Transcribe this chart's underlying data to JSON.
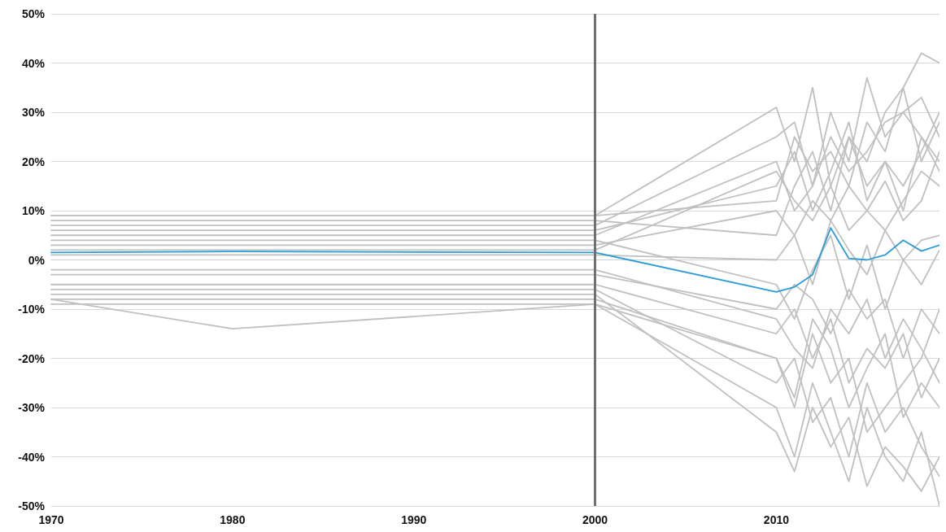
{
  "chart_data": {
    "type": "line",
    "x": [
      1970,
      1980,
      2000,
      2010,
      2011,
      2012,
      2013,
      2014,
      2015,
      2016,
      2017,
      2018,
      2019
    ],
    "xlim": [
      1970,
      2019
    ],
    "xticks": [
      1970,
      1980,
      1990,
      2000,
      2010
    ],
    "ylim": [
      -50,
      50
    ],
    "yticks": [
      {
        "value": -50,
        "label": "-50%"
      },
      {
        "value": -40,
        "label": "-40%"
      },
      {
        "value": -30,
        "label": "-30%"
      },
      {
        "value": -20,
        "label": "-20%"
      },
      {
        "value": -10,
        "label": "-10%"
      },
      {
        "value": 0,
        "label": "0%"
      },
      {
        "value": 10,
        "label": "10%"
      },
      {
        "value": 20,
        "label": "20%"
      },
      {
        "value": 30,
        "label": "30%"
      },
      {
        "value": 40,
        "label": "40%"
      },
      {
        "value": 50,
        "label": "50%"
      }
    ],
    "grid": "y",
    "marker": "none",
    "line_style": "solid",
    "ref_lines": [
      {
        "axis": "x",
        "value": 2000,
        "color": "#707070"
      }
    ],
    "series": [
      {
        "color": "#c0c0c0",
        "values": [
          9,
          9,
          9,
          31,
          20,
          35,
          15,
          25,
          20,
          30,
          35,
          42,
          40
        ]
      },
      {
        "color": "#c0c0c0",
        "values": [
          -9,
          -9,
          -9,
          -30,
          -40,
          -25,
          -35,
          -45,
          -30,
          -40,
          -45,
          -35,
          -50
        ]
      },
      {
        "color": "#c0c0c0",
        "values": [
          -8,
          -14,
          -9,
          -20,
          -30,
          -15,
          -25,
          -20,
          -35,
          -30,
          -25,
          -20,
          -10
        ]
      },
      {
        "color": "#c0c0c0",
        "values": [
          5,
          5,
          5,
          20,
          10,
          15,
          25,
          18,
          22,
          28,
          30,
          25,
          20
        ]
      },
      {
        "color": "#c0c0c0",
        "values": [
          -5,
          -5,
          -5,
          -15,
          -10,
          -20,
          -12,
          -25,
          -18,
          -22,
          -15,
          -28,
          -20
        ]
      },
      {
        "color": "#c0c0c0",
        "values": [
          3,
          3,
          3,
          10,
          5,
          12,
          8,
          15,
          10,
          6,
          12,
          18,
          15
        ]
      },
      {
        "color": "#c0c0c0",
        "values": [
          -3,
          -3,
          -3,
          -10,
          -5,
          -8,
          -15,
          -6,
          -12,
          -8,
          -20,
          -10,
          -15
        ]
      },
      {
        "color": "#c0c0c0",
        "values": [
          7,
          7,
          7,
          25,
          28,
          15,
          30,
          20,
          37,
          25,
          30,
          33,
          25
        ]
      },
      {
        "color": "#c0c0c0",
        "values": [
          -7,
          -7,
          -7,
          -35,
          -43,
          -30,
          -38,
          -32,
          -46,
          -38,
          -42,
          -47,
          -40
        ]
      },
      {
        "color": "#c0c0c0",
        "values": [
          1,
          1,
          1,
          0,
          5,
          -5,
          8,
          2,
          -3,
          6,
          0,
          4,
          5
        ]
      },
      {
        "color": "#c0c0c0",
        "values": [
          6,
          6,
          6,
          15,
          22,
          10,
          18,
          28,
          12,
          20,
          15,
          22,
          30
        ]
      },
      {
        "color": "#c0c0c0",
        "values": [
          -6,
          -6,
          -6,
          -25,
          -20,
          -33,
          -28,
          -40,
          -25,
          -35,
          -30,
          -38,
          -44
        ]
      },
      {
        "color": "#c0c0c0",
        "values": [
          4,
          4,
          4,
          -5,
          -12,
          -2,
          5,
          -8,
          3,
          -10,
          0,
          -5,
          2
        ]
      },
      {
        "color": "#c0c0c0",
        "values": [
          8,
          8,
          8,
          5,
          15,
          22,
          10,
          25,
          15,
          20,
          10,
          25,
          18
        ]
      },
      {
        "color": "#c0c0c0",
        "values": [
          -8,
          -8,
          -8,
          -20,
          -28,
          -12,
          -18,
          -30,
          -22,
          -15,
          -32,
          -25,
          -30
        ]
      },
      {
        "color": "#c0c0c0",
        "values": [
          2,
          2,
          2,
          18,
          12,
          8,
          15,
          6,
          10,
          16,
          8,
          12,
          22
        ]
      },
      {
        "color": "#c0c0c0",
        "values": [
          -2,
          -2,
          -2,
          -12,
          -18,
          -22,
          -10,
          -15,
          -8,
          -20,
          -12,
          -18,
          -25
        ]
      },
      {
        "color": "#c0c0c0",
        "values": [
          9,
          9,
          9,
          12,
          25,
          18,
          22,
          15,
          28,
          22,
          35,
          20,
          28
        ]
      },
      {
        "color": "#2b9cd8",
        "values": [
          1.5,
          1.7,
          1.5,
          -6.5,
          -5.5,
          -3,
          6.5,
          0.3,
          0,
          1,
          4,
          1.8,
          3
        ]
      }
    ]
  }
}
